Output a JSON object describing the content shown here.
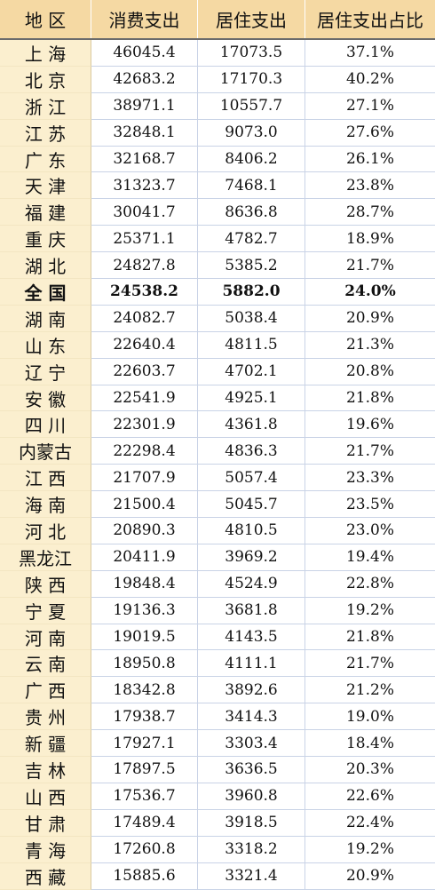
{
  "header": [
    "地 区",
    "消费支出",
    "居住支出",
    "居住支出占比"
  ],
  "rows": [
    [
      "上 海",
      "46045.4",
      "17073.5",
      "37.1%"
    ],
    [
      "北 京",
      "42683.2",
      "17170.3",
      "40.2%"
    ],
    [
      "浙 江",
      "38971.1",
      "10557.7",
      "27.1%"
    ],
    [
      "江 苏",
      "32848.1",
      "9073.0",
      "27.6%"
    ],
    [
      "广 东",
      "32168.7",
      "8406.2",
      "26.1%"
    ],
    [
      "天 津",
      "31323.7",
      "7468.1",
      "23.8%"
    ],
    [
      "福 建",
      "30041.7",
      "8636.8",
      "28.7%"
    ],
    [
      "重 庆",
      "25371.1",
      "4782.7",
      "18.9%"
    ],
    [
      "湖 北",
      "24827.8",
      "5385.2",
      "21.7%"
    ],
    [
      "全 国",
      "24538.2",
      "5882.0",
      "24.0%"
    ],
    [
      "湖 南",
      "24082.7",
      "5038.4",
      "20.9%"
    ],
    [
      "山 东",
      "22640.4",
      "4811.5",
      "21.3%"
    ],
    [
      "辽 宁",
      "22603.7",
      "4702.1",
      "20.8%"
    ],
    [
      "安 徽",
      "22541.9",
      "4925.1",
      "21.8%"
    ],
    [
      "四 川",
      "22301.9",
      "4361.8",
      "19.6%"
    ],
    [
      "内蒙古",
      "22298.4",
      "4836.3",
      "21.7%"
    ],
    [
      "江 西",
      "21707.9",
      "5057.4",
      "23.3%"
    ],
    [
      "海 南",
      "21500.4",
      "5045.7",
      "23.5%"
    ],
    [
      "河 北",
      "20890.3",
      "4810.5",
      "23.0%"
    ],
    [
      "黑龙江",
      "20411.9",
      "3969.2",
      "19.4%"
    ],
    [
      "陕 西",
      "19848.4",
      "4524.9",
      "22.8%"
    ],
    [
      "宁 夏",
      "19136.3",
      "3681.8",
      "19.2%"
    ],
    [
      "河 南",
      "19019.5",
      "4143.5",
      "21.8%"
    ],
    [
      "云 南",
      "18950.8",
      "4111.1",
      "21.7%"
    ],
    [
      "广 西",
      "18342.8",
      "3892.6",
      "21.2%"
    ],
    [
      "贵 州",
      "17938.7",
      "3414.3",
      "19.0%"
    ],
    [
      "新 疆",
      "17927.1",
      "3303.4",
      "18.4%"
    ],
    [
      "吉 林",
      "17897.5",
      "3636.5",
      "20.3%"
    ],
    [
      "山 西",
      "17536.7",
      "3960.8",
      "22.6%"
    ],
    [
      "甘 肃",
      "17489.4",
      "3918.5",
      "22.4%"
    ],
    [
      "青 海",
      "17260.8",
      "3318.2",
      "19.2%"
    ],
    [
      "西 藏",
      "15885.6",
      "3321.4",
      "20.9%"
    ]
  ],
  "bold_row": "全 国",
  "colors": {
    "header_bg": "#f5d9a3",
    "region_bg": "#fbefcf",
    "grid": "#c9d3e6"
  }
}
